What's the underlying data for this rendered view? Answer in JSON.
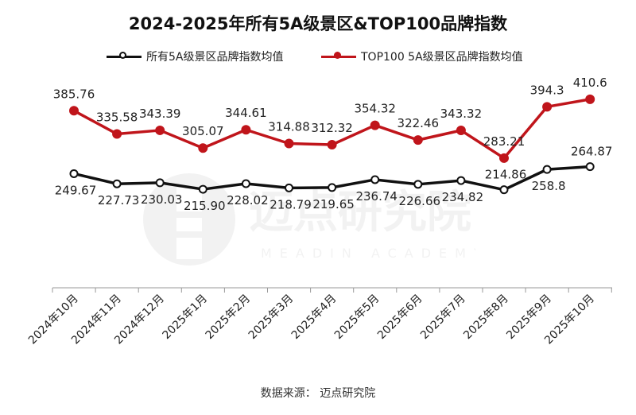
{
  "chart_data": {
    "type": "line",
    "title": "2024-2025年所有5A级景区&TOP100品牌指数",
    "categories": [
      "2024年10月",
      "2024年11月",
      "2024年12月",
      "2025年1月",
      "2025年2月",
      "2025年3月",
      "2025年4月",
      "2025年5月",
      "2025年6月",
      "2025年7月",
      "2025年8月",
      "2025年9月",
      "2025年10月"
    ],
    "series": [
      {
        "name": "所有5A级景区品牌指数均值",
        "color": "#111111",
        "values": [
          249.67,
          227.73,
          230.03,
          215.9,
          228.02,
          218.79,
          219.65,
          236.74,
          226.66,
          234.82,
          214.86,
          258.8,
          264.87
        ],
        "labels": [
          "249.67",
          "227.73",
          "230.03",
          "215.90",
          "228.02",
          "218.79",
          "219.65",
          "236.74",
          "226.66",
          "234.82",
          "214.86",
          "258.8",
          "264.87"
        ]
      },
      {
        "name": "TOP100 5A级景区品牌指数均值",
        "color": "#c0151b",
        "values": [
          385.76,
          335.58,
          343.39,
          305.07,
          344.61,
          314.88,
          312.32,
          354.32,
          322.46,
          343.32,
          283.21,
          394.3,
          410.6
        ],
        "labels": [
          "385.76",
          "335.58",
          "343.39",
          "305.07",
          "344.61",
          "314.88",
          "312.32",
          "354.32",
          "322.46",
          "343.32",
          "283.21",
          "394.3",
          "410.6"
        ]
      }
    ],
    "grid": false,
    "legend_position": "top-center"
  },
  "watermark": {
    "brand": "迈点研究院",
    "brand_en": "MEADIN ACADEMY"
  },
  "source": "数据来源：  迈点研究院"
}
